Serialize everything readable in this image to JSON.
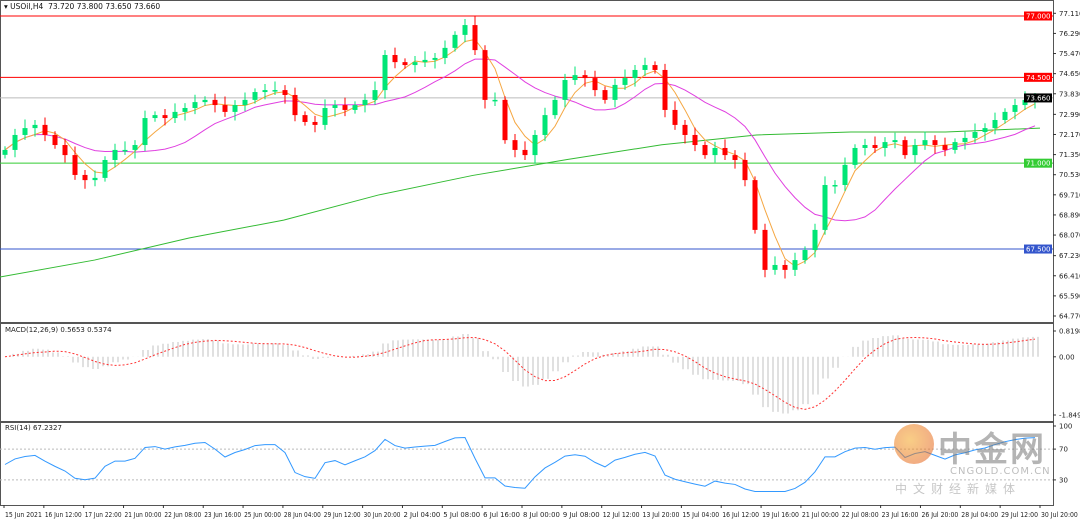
{
  "header": {
    "symbol": "USOil,H4",
    "ohlc": "73.720 73.800 73.650 73.660"
  },
  "macd": {
    "label": "MACD(12,26,9) 0.5653 0.5374",
    "ticks": [
      "0.8198",
      "0.00",
      "-1.8495"
    ],
    "range": [
      -1.8495,
      0.8198
    ]
  },
  "rsi": {
    "label": "RSI(14) 67.2327",
    "ticks": [
      "100",
      "70",
      "30"
    ],
    "range": [
      0,
      100
    ],
    "levels": [
      70,
      30
    ]
  },
  "logo": {
    "name": "中金网",
    "url": "CNGOLD.COM.CN",
    "sub": "中文财经新媒体"
  },
  "chart_data": {
    "type": "candlestick",
    "ylim": [
      64.77,
      77.11
    ],
    "yticks": [
      "77.110",
      "76.290",
      "75.470",
      "74.650",
      "73.830",
      "72.990",
      "72.170",
      "71.350",
      "70.530",
      "69.710",
      "68.890",
      "68.070",
      "67.230",
      "66.410",
      "65.590",
      "64.770"
    ],
    "xticks": [
      "15 Jun 2021",
      "16 Jun 12:00",
      "17 Jun 22:00",
      "21 Jun 00:00",
      "22 Jun 08:00",
      "23 Jun 16:00",
      "25 Jun 00:00",
      "28 Jun 04:00",
      "29 Jun 12:00",
      "30 Jun 20:00",
      "2 Jul 04:00",
      "5 Jul 08:00",
      "6 Jul 16:00",
      "8 Jul 00:00",
      "9 Jul 08:00",
      "12 Jul 12:00",
      "13 Jul 20:00",
      "15 Jul 04:00",
      "16 Jul 12:00",
      "19 Jul 16:00",
      "21 Jul 00:00",
      "22 Jul 08:00",
      "23 Jul 16:00",
      "26 Jul 20:00",
      "28 Jul 04:00",
      "29 Jul 12:00",
      "30 Jul 20:00"
    ],
    "closes": [
      71.54,
      72.15,
      72.43,
      72.56,
      72.15,
      71.74,
      71.33,
      70.52,
      70.31,
      70.4,
      71.13,
      71.54,
      71.54,
      71.74,
      72.84,
      72.96,
      72.84,
      73.09,
      73.25,
      73.49,
      73.58,
      73.37,
      73.09,
      73.37,
      73.58,
      73.9,
      73.98,
      73.98,
      73.78,
      72.96,
      72.68,
      72.56,
      73.25,
      73.37,
      73.17,
      73.37,
      73.58,
      73.98,
      75.41,
      75.12,
      75.0,
      75.12,
      75.21,
      75.29,
      75.7,
      76.23,
      76.63,
      75.61,
      73.58,
      73.58,
      71.94,
      71.54,
      71.33,
      72.15,
      72.96,
      73.58,
      74.39,
      74.59,
      74.47,
      73.98,
      73.58,
      74.19,
      74.47,
      74.8,
      75.0,
      74.8,
      73.17,
      72.56,
      72.15,
      71.74,
      71.33,
      71.62,
      71.33,
      71.13,
      70.31,
      68.28,
      66.65,
      66.85,
      66.65,
      67.05,
      67.46,
      68.28,
      70.11,
      70.11,
      70.93,
      71.62,
      71.74,
      71.62,
      71.86,
      71.94,
      71.33,
      71.74,
      71.94,
      71.74,
      71.54,
      71.86,
      72.03,
      72.27,
      72.43,
      72.76,
      73.09,
      73.37,
      73.58,
      73.66
    ],
    "long_ma": [
      66.36,
      67.05,
      67.95,
      68.68,
      69.7,
      70.5,
      71.15,
      71.75,
      72.15,
      72.27,
      72.27,
      72.43
    ],
    "levels": [
      {
        "price": 77.0,
        "label": "77.000",
        "color": "#ff0000"
      },
      {
        "price": 74.5,
        "label": "74.500",
        "color": "#ff0000"
      },
      {
        "price": 71.0,
        "label": "71.000",
        "color": "#33cc33"
      },
      {
        "price": 67.5,
        "label": "67.500",
        "color": "#3355cc"
      }
    ],
    "current": {
      "price": 73.66,
      "label": "73.660"
    },
    "colors": {
      "bull": "#00e676",
      "bear": "#ff0000",
      "fast_ma": "#f5a742",
      "mid_ma": "#e040e0",
      "long_ma": "#33bb33",
      "macd_hist": "#c0c0c0",
      "macd_signal": "#ff3333",
      "rsi": "#3399ff"
    }
  }
}
